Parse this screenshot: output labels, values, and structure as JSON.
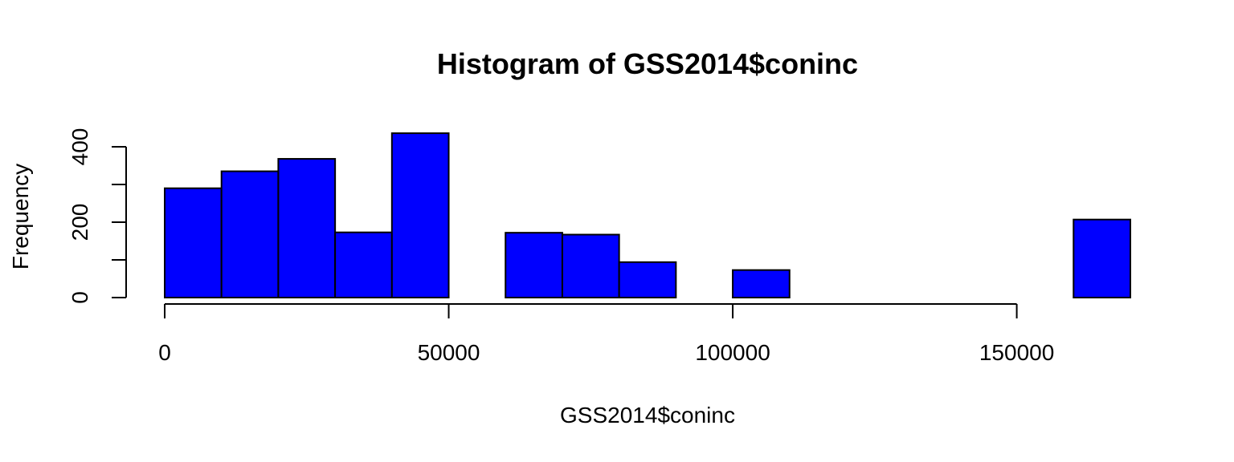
{
  "chart_data": {
    "type": "bar",
    "title": "Histogram of GSS2014$coninc",
    "xlabel": "GSS2014$coninc",
    "ylabel": "Frequency",
    "bar_color": "#0000ff",
    "bin_edges": [
      0,
      10000,
      20000,
      30000,
      40000,
      50000,
      60000,
      70000,
      80000,
      90000,
      100000,
      110000,
      120000,
      130000,
      140000,
      150000,
      160000,
      170000
    ],
    "values": [
      290,
      335,
      368,
      173,
      436,
      0,
      172,
      167,
      94,
      0,
      73,
      0,
      0,
      0,
      0,
      0,
      207
    ],
    "xlim": [
      0,
      170000
    ],
    "ylim": [
      0,
      400
    ],
    "x_ticks": [
      0,
      50000,
      100000,
      150000
    ],
    "x_tick_labels": [
      "0",
      "50000",
      "100000",
      "150000"
    ],
    "y_ticks": [
      0,
      100,
      200,
      300,
      400
    ],
    "y_tick_labels": [
      "0",
      "",
      "200",
      "",
      "400"
    ],
    "grid": false
  }
}
